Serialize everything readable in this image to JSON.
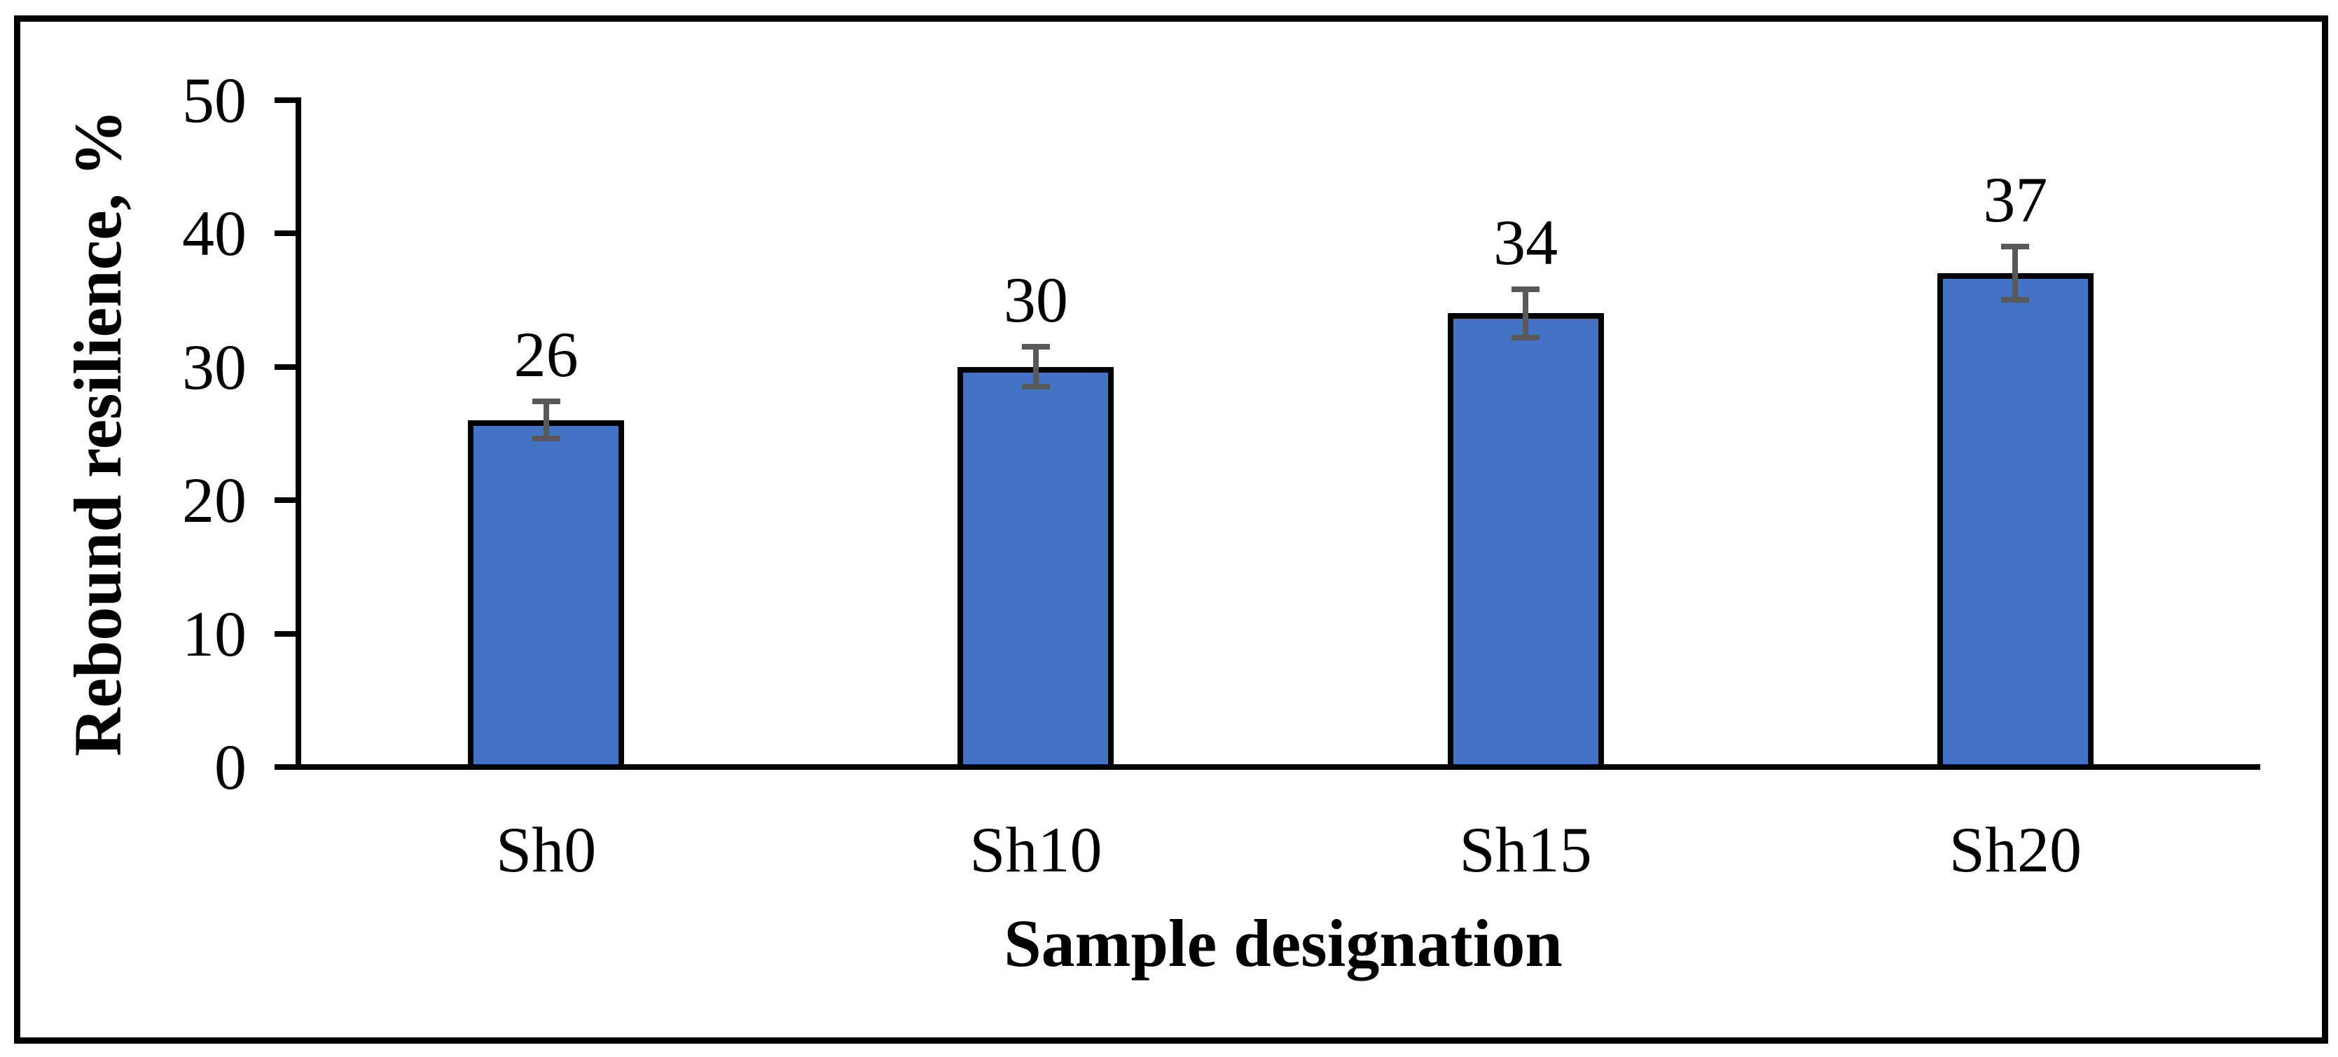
{
  "chart_data": {
    "type": "bar",
    "title": "",
    "categories": [
      "Sh0",
      "Sh10",
      "Sh15",
      "Sh20"
    ],
    "values": [
      26,
      30,
      34,
      37
    ],
    "data_labels": [
      "26",
      "30",
      "34",
      "37"
    ],
    "errors_estimated": [
      1.4,
      1.5,
      1.8,
      2.0
    ],
    "xlabel": "Sample designation",
    "ylabel": "Rebound resilience, %",
    "ylim": [
      0,
      50
    ],
    "ytick_step": 10,
    "ytick_labels": [
      "0",
      "10",
      "20",
      "30",
      "40",
      "50"
    ],
    "grid": false,
    "legend": "none",
    "bar_color": "#4472C4",
    "bar_border_color": "#000000",
    "error_bar_color": "#595959",
    "axis_color": "#000000",
    "frame_color": "#000000",
    "background_color": "#ffffff"
  }
}
